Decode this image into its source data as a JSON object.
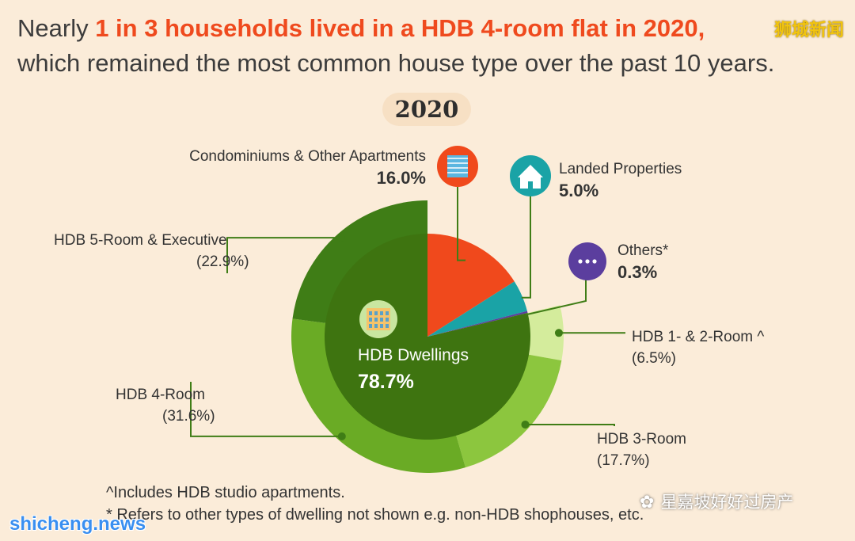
{
  "headline": {
    "prefix": "Nearly ",
    "highlight": "1 in 3 households lived in a HDB 4-room flat in 2020,",
    "line2": "which remained the most common house type over the past 10 years."
  },
  "year_label": "2020",
  "watermarks": {
    "top_right": "狮城新闻",
    "bottom_left": "shicheng.news",
    "bottom_right": "星嘉坡好好过房产"
  },
  "footnotes": [
    "^Includes HDB studio apartments.",
    "* Refers to other types of dwelling not shown e.g. non-HDB shophouses, etc."
  ],
  "colors": {
    "condo": "#f0491c",
    "landed": "#1aa3a6",
    "others": "#5b3e9e",
    "hdb_inner": "#3e7410",
    "hdb_5room": "#3f7d16",
    "hdb_4room": "#6aab25",
    "hdb_3room": "#8cc63e",
    "hdb_12room": "#d4ec9c",
    "background": "#fbecd9"
  },
  "chart_data": {
    "type": "pie",
    "title": "2020",
    "inner": {
      "label": "HDB Dwellings",
      "value": 78.7,
      "value_label": "78.7%"
    },
    "slices": [
      {
        "name": "Condominiums & Other Apartments",
        "value": 16.0,
        "value_label": "16.0%",
        "icon": "building-icon"
      },
      {
        "name": "Landed Properties",
        "value": 5.0,
        "value_label": "5.0%",
        "icon": "house-icon"
      },
      {
        "name": "Others*",
        "value": 0.3,
        "value_label": "0.3%",
        "icon": "ellipsis-icon"
      }
    ],
    "hdb_breakdown": [
      {
        "name": "HDB 1- & 2-Room ^",
        "value": 6.5,
        "value_label": "(6.5%)"
      },
      {
        "name": "HDB 3-Room",
        "value": 17.7,
        "value_label": "(17.7%)"
      },
      {
        "name": "HDB 4-Room",
        "value": 31.6,
        "value_label": "(31.6%)"
      },
      {
        "name": "HDB 5-Room & Executive",
        "value": 22.9,
        "value_label": "(22.9%)"
      }
    ]
  }
}
